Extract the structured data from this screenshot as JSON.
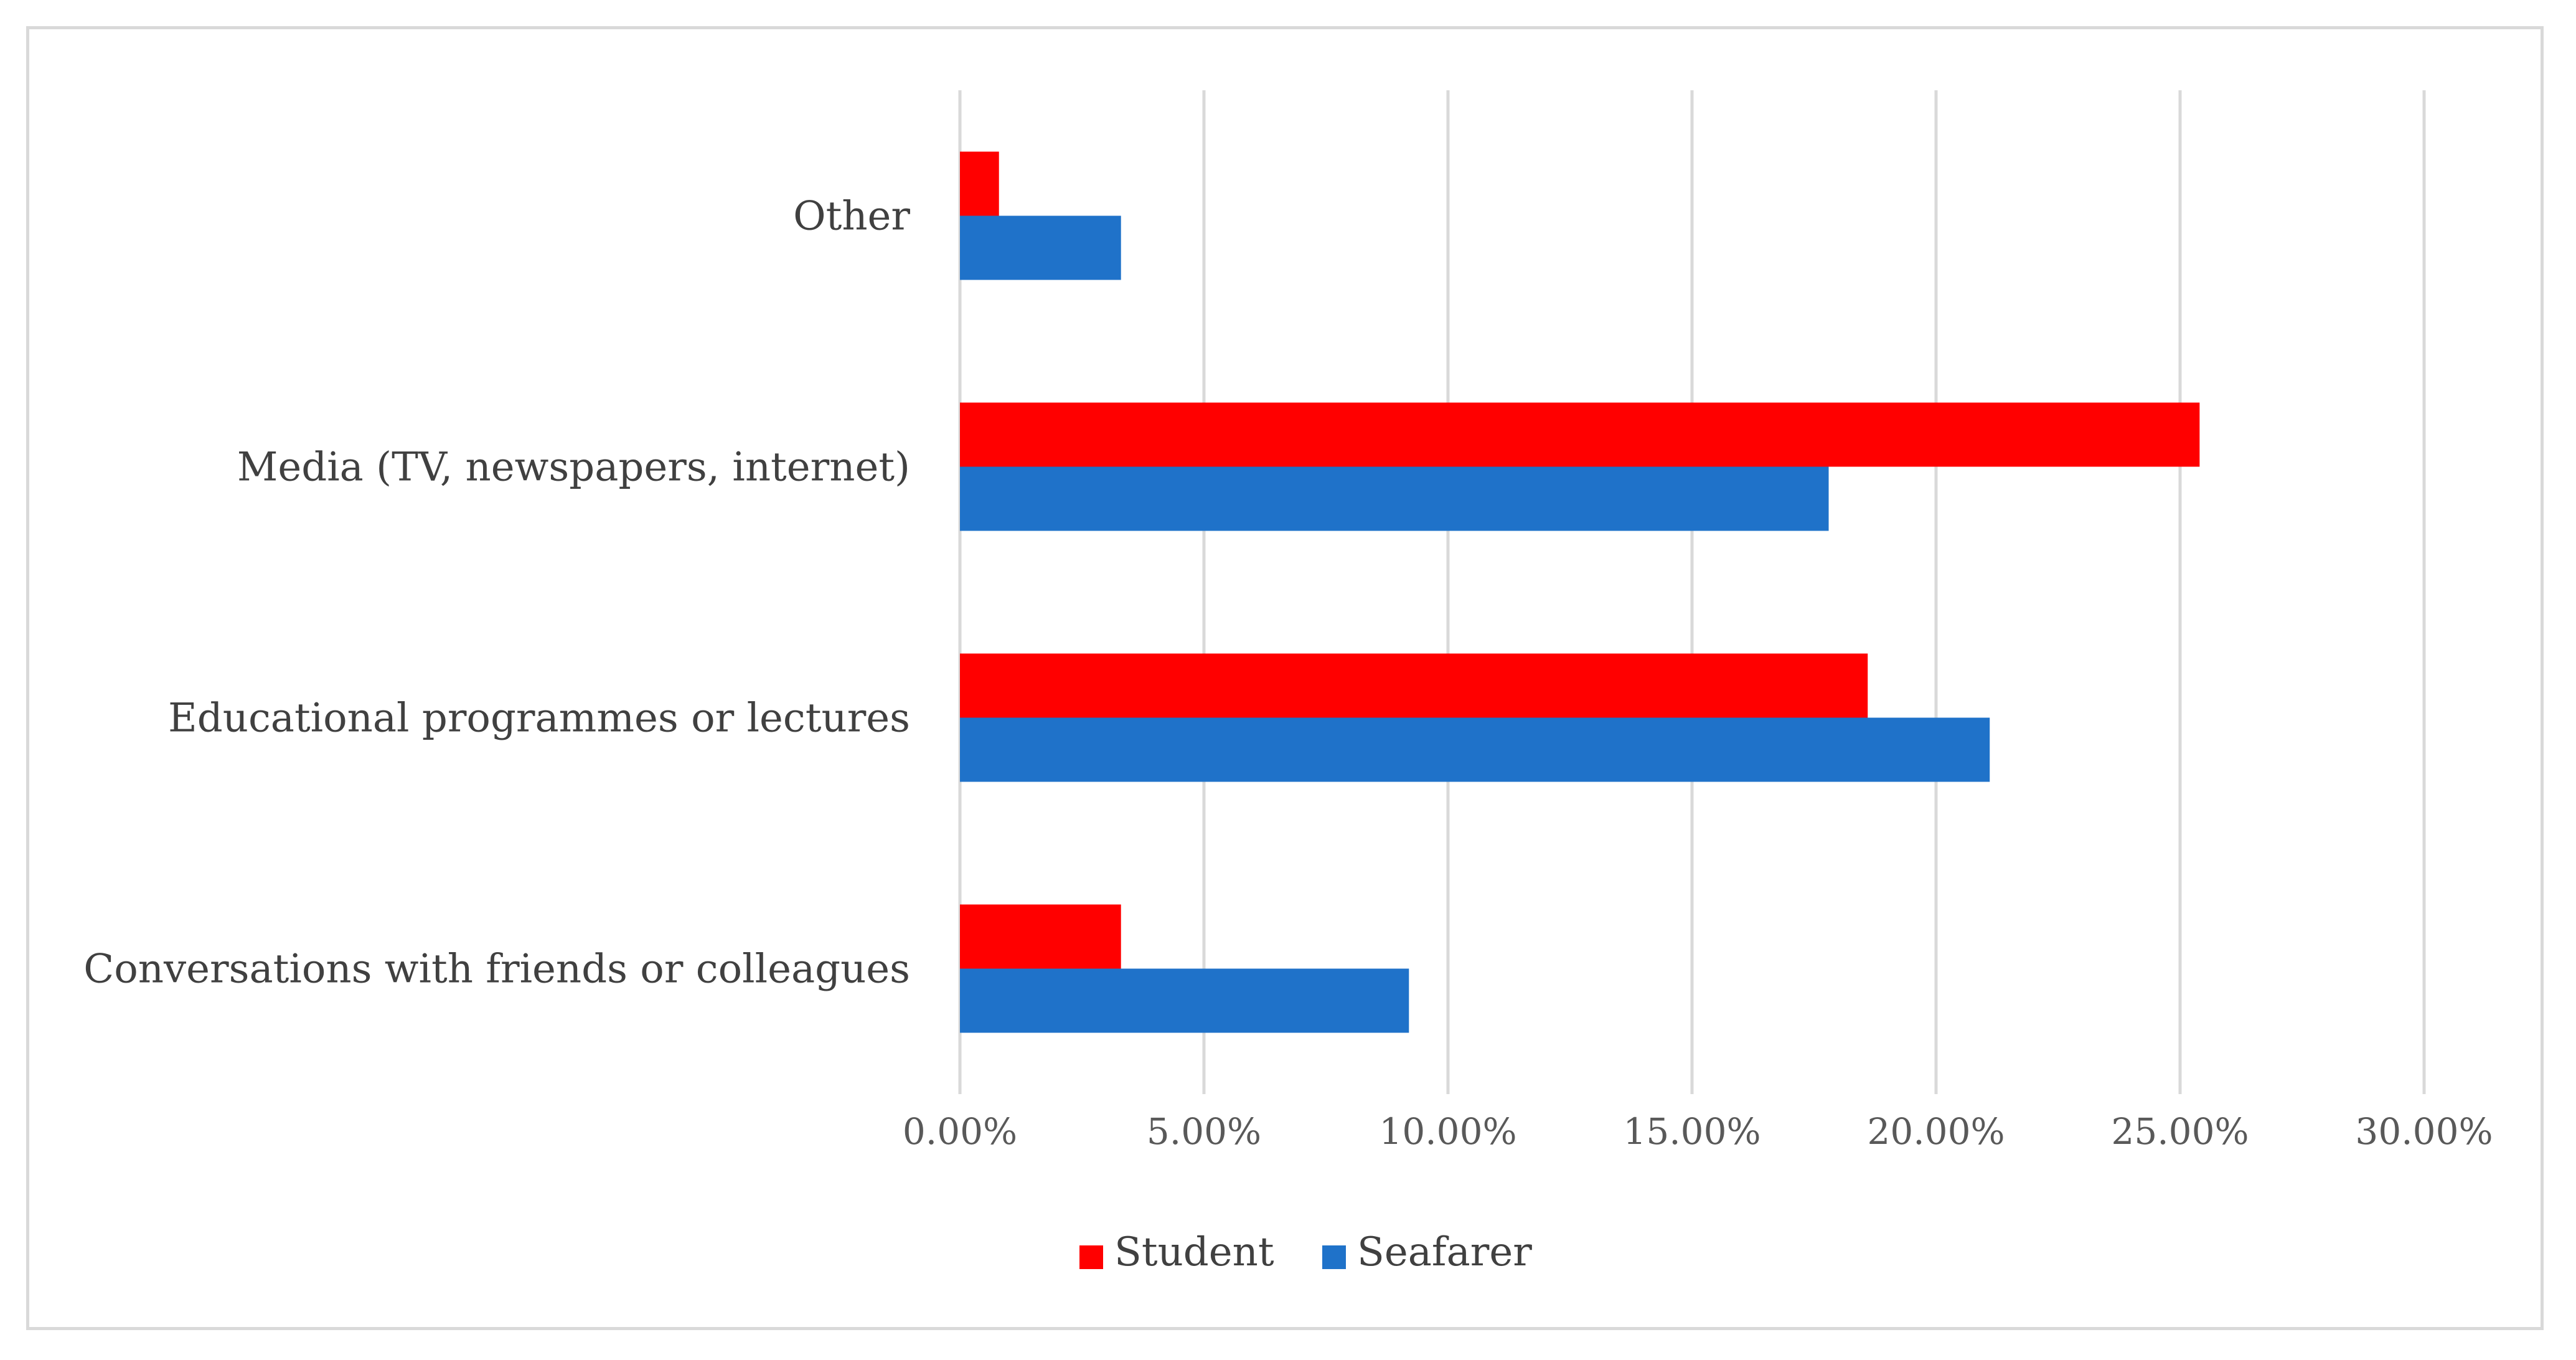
{
  "chart_data": {
    "type": "bar",
    "orientation": "horizontal",
    "categories": [
      "Conversations with friends or colleagues",
      "Educational programmes or lectures",
      "Media (TV, newspapers, internet)",
      "Other"
    ],
    "series": [
      {
        "name": "Student",
        "color": "#ff0000",
        "values": [
          3.3,
          18.6,
          25.4,
          0.8
        ]
      },
      {
        "name": "Seafarer",
        "color": "#1f72c9",
        "values": [
          9.2,
          21.1,
          17.8,
          3.3
        ]
      }
    ],
    "xlim": [
      0,
      30
    ],
    "x_ticks": [
      "0.00%",
      "5.00%",
      "10.00%",
      "15.00%",
      "20.00%",
      "25.00%",
      "30.00%"
    ],
    "grid": "vertical",
    "legend_position": "bottom",
    "gridline_color": "#d9d9d9"
  }
}
